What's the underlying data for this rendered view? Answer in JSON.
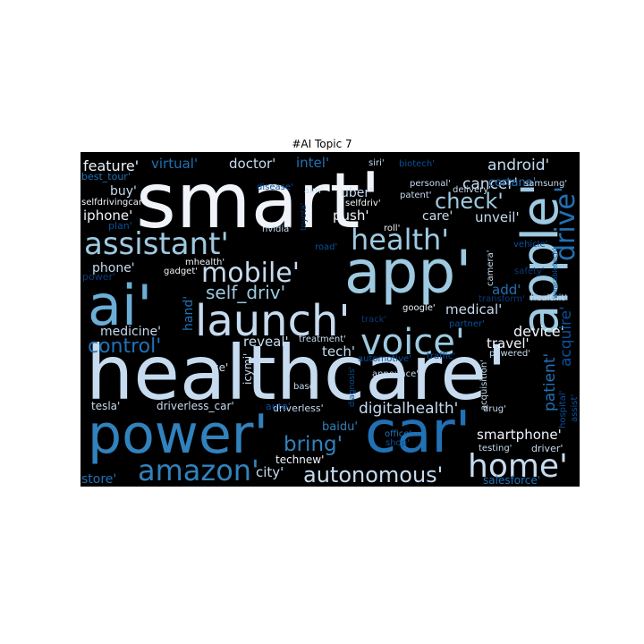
{
  "title": "#AI Topic 7",
  "colors": {
    "background": "#000000",
    "white": "#f0f4fa",
    "pale": "#c6dbef",
    "light": "#9ecae1",
    "mid": "#6baed6",
    "blue": "#3182bd",
    "deep": "#2171b5",
    "dark": "#08519c",
    "navy": "#083a7a"
  },
  "words": [
    {
      "text": "smart'",
      "color": "white"
    },
    {
      "text": "healthcare'",
      "color": "pale"
    },
    {
      "text": "app'",
      "color": "light"
    },
    {
      "text": "power'",
      "color": "blue"
    },
    {
      "text": "car'",
      "color": "deep"
    },
    {
      "text": "ai'",
      "color": "mid"
    },
    {
      "text": "launch'",
      "color": "pale"
    },
    {
      "text": "apple'",
      "color": "light"
    },
    {
      "text": "voice'",
      "color": "light"
    },
    {
      "text": "assistant'",
      "color": "light"
    },
    {
      "text": "health'",
      "color": "light"
    },
    {
      "text": "mobile'",
      "color": "pale"
    },
    {
      "text": "home'",
      "color": "pale"
    },
    {
      "text": "amazon'",
      "color": "blue"
    },
    {
      "text": "autonomous'",
      "color": "pale"
    },
    {
      "text": "drive'",
      "color": "deep"
    },
    {
      "text": "check'",
      "color": "light"
    },
    {
      "text": "control'",
      "color": "deep"
    },
    {
      "text": "bring'",
      "color": "blue"
    },
    {
      "text": "self_driv'",
      "color": "light"
    },
    {
      "text": "android'",
      "color": "pale"
    },
    {
      "text": "cancer'",
      "color": "pale"
    },
    {
      "text": "feature'",
      "color": "white"
    },
    {
      "text": "virtual'",
      "color": "deep"
    },
    {
      "text": "doctor'",
      "color": "pale"
    },
    {
      "text": "intel'",
      "color": "deep"
    },
    {
      "text": "best_tour'",
      "color": "deep"
    },
    {
      "text": "uber'",
      "color": "pale"
    },
    {
      "text": "buy'",
      "color": "pale"
    },
    {
      "text": "iphone'",
      "color": "white"
    },
    {
      "text": "push'",
      "color": "white"
    },
    {
      "text": "care'",
      "color": "pale"
    },
    {
      "text": "unveil'",
      "color": "pale"
    },
    {
      "text": "phone'",
      "color": "pale"
    },
    {
      "text": "medicine'",
      "color": "pale"
    },
    {
      "text": "medical'",
      "color": "pale"
    },
    {
      "text": "device'",
      "color": "white"
    },
    {
      "text": "reveal'",
      "color": "pale"
    },
    {
      "text": "travel'",
      "color": "white"
    },
    {
      "text": "tech'",
      "color": "pale"
    },
    {
      "text": "digitalhealth'",
      "color": "pale"
    },
    {
      "text": "smartphone'",
      "color": "white"
    },
    {
      "text": "patient'",
      "color": "deep"
    },
    {
      "text": "acquire'",
      "color": "dark"
    },
    {
      "text": "add'",
      "color": "deep"
    },
    {
      "text": "cortana'",
      "color": "deep"
    },
    {
      "text": "store'",
      "color": "deep"
    },
    {
      "text": "city'",
      "color": "pale"
    },
    {
      "text": "salesforce'",
      "color": "deep"
    },
    {
      "text": "technew'",
      "color": "white"
    },
    {
      "text": "driverless_car'",
      "color": "pale"
    },
    {
      "text": "tesla'",
      "color": "pale"
    },
    {
      "text": "driverless'",
      "color": "pale"
    },
    {
      "text": "baidu'",
      "color": "blue"
    },
    {
      "text": "hand'",
      "color": "deep"
    },
    {
      "text": "ce'",
      "color": "pale"
    },
    {
      "text": "icymi'",
      "color": "pale"
    },
    {
      "text": "base'",
      "color": "pale"
    },
    {
      "text": "treatment'",
      "color": "pale"
    },
    {
      "text": "google'",
      "color": "white"
    },
    {
      "text": "announce'",
      "color": "pale"
    },
    {
      "text": "automotive'",
      "color": "dark"
    },
    {
      "text": "traffic'",
      "color": "dark"
    },
    {
      "text": "powered'",
      "color": "pale"
    },
    {
      "text": "acquisition'",
      "color": "pale"
    },
    {
      "text": "drug'",
      "color": "pale"
    },
    {
      "text": "driver'",
      "color": "pale"
    },
    {
      "text": "testing'",
      "color": "pale"
    },
    {
      "text": "office'",
      "color": "deep"
    },
    {
      "text": "shop'",
      "color": "dark"
    },
    {
      "text": "auto'",
      "color": "dark"
    },
    {
      "text": "hospital'",
      "color": "dark"
    },
    {
      "text": "assist'",
      "color": "dark"
    },
    {
      "text": "diagnosis'",
      "color": "dark"
    },
    {
      "text": "siri'",
      "color": "pale"
    },
    {
      "text": "biotech'",
      "color": "dark"
    },
    {
      "text": "personal'",
      "color": "pale"
    },
    {
      "text": "delivery'",
      "color": "pale"
    },
    {
      "text": "samsung'",
      "color": "pale"
    },
    {
      "text": "patent'",
      "color": "pale"
    },
    {
      "text": "disease'",
      "color": "dark"
    },
    {
      "text": "aim'",
      "color": "pale"
    },
    {
      "text": "selfdriv'",
      "color": "white"
    },
    {
      "text": "selfdrivingcar'",
      "color": "white"
    },
    {
      "text": "plan'",
      "color": "dark"
    },
    {
      "text": "nvidia'",
      "color": "pale"
    },
    {
      "text": "toyota'",
      "color": "navy"
    },
    {
      "text": "roll'",
      "color": "white"
    },
    {
      "text": "road'",
      "color": "dark"
    },
    {
      "text": "vehicle'",
      "color": "dark"
    },
    {
      "text": "camera'",
      "color": "pale"
    },
    {
      "text": "safety'",
      "color": "navy"
    },
    {
      "text": "mhealth'",
      "color": "white"
    },
    {
      "text": "gadget'",
      "color": "white"
    },
    {
      "text": "transform'",
      "color": "navy"
    },
    {
      "text": "healthit'",
      "color": "pale"
    },
    {
      "text": "wearabletech'",
      "color": "dark"
    },
    {
      "text": "track'",
      "color": "navy"
    },
    {
      "text": "partner'",
      "color": "dark"
    },
    {
      "text": "power'",
      "color": "navy"
    }
  ]
}
